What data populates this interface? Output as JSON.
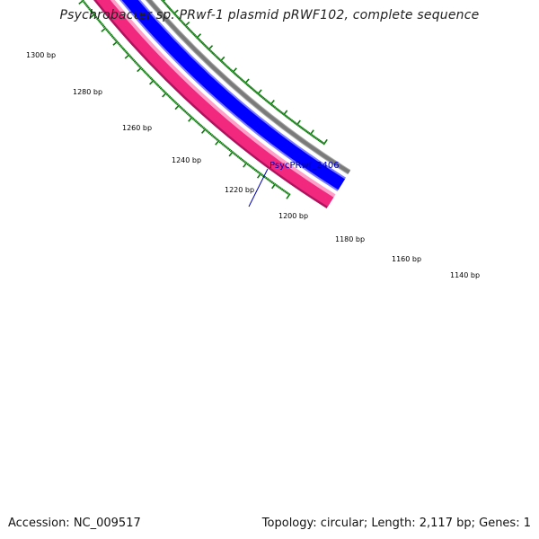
{
  "title": "Psychrobacter sp. PRwf-1 plasmid pRWF102, complete sequence",
  "footer": {
    "accession": "Accession: NC_009517",
    "topology": "Topology: circular; Length: 2,117 bp; Genes: 1"
  },
  "gene_label": "PsycPRwf_2406",
  "colors": {
    "outer_track_dark": "#b0125d",
    "outer_track": "#f2287f",
    "outer_track_light": "#ff9fca",
    "inner_track": "#0000ff",
    "inner_track_light": "#7b7bff",
    "backbone": "#7a7a7a",
    "ticks": "#0c7a0c",
    "gene_label": "#0000b0"
  },
  "ticks": [
    {
      "label": "1300 bp"
    },
    {
      "label": "1280 bp"
    },
    {
      "label": "1260 bp"
    },
    {
      "label": "1240 bp"
    },
    {
      "label": "1220 bp"
    },
    {
      "label": "1200 bp"
    },
    {
      "label": "1180 bp"
    },
    {
      "label": "1160 bp"
    },
    {
      "label": "1140 bp"
    }
  ]
}
